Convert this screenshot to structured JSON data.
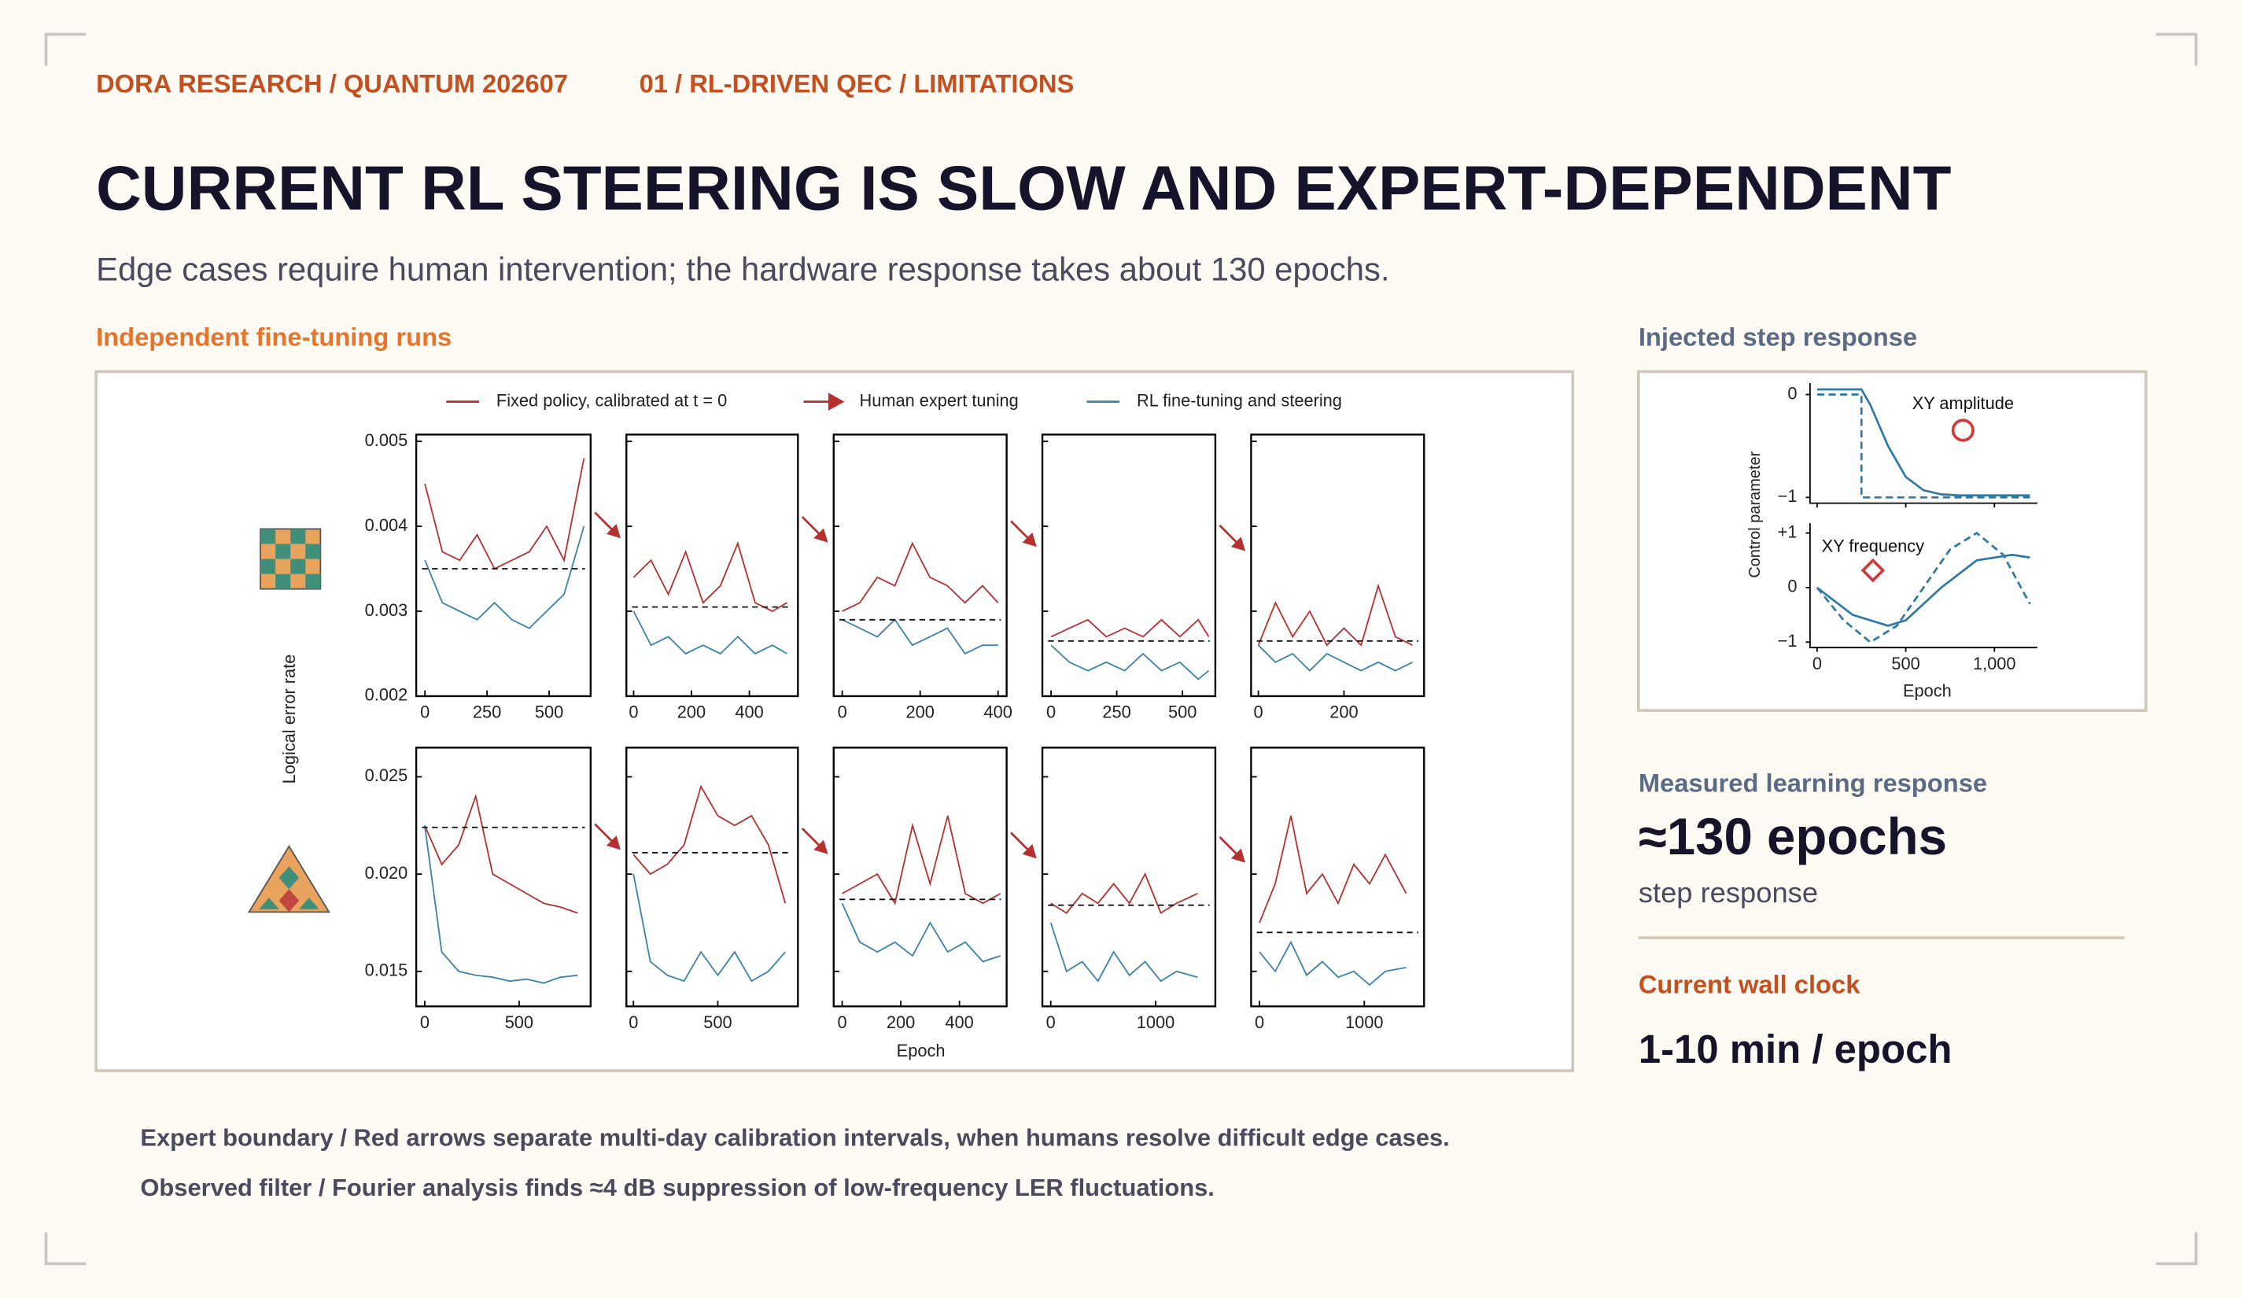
{
  "header": {
    "kicker": "DORA RESEARCH / QUANTUM 202607",
    "section": "01 / RL-DRIVEN QEC / LIMITATIONS",
    "title": "CURRENT RL STEERING IS SLOW AND EXPERT-DEPENDENT",
    "subtitle": "Edge cases require human intervention; the hardware response takes about 130 epochs."
  },
  "runs_figure": {
    "label": "Independent fine-tuning runs",
    "y_axis_label": "Logical error rate",
    "x_axis_label": "Epoch",
    "legend": [
      {
        "name": "Fixed policy, calibrated at t = 0",
        "color": "#b5312f"
      },
      {
        "name": "Human expert tuning",
        "color": "#b5312f"
      },
      {
        "name": "RL fine-tuning and steering",
        "color": "#3b83a8"
      }
    ],
    "rows": [
      {
        "ylim": [
          0.002,
          0.00508
        ],
        "yticks": [
          0.002,
          0.003,
          0.004,
          0.005
        ],
        "panels": [
          {
            "xlim": [
              -35,
              667
            ],
            "xticks": [
              0,
              250,
              500
            ],
            "baseline": 0.0035,
            "x": [
              0,
              70,
              140,
              210,
              280,
              350,
              420,
              490,
              560,
              640
            ],
            "fixed": [
              0.0045,
              0.0037,
              0.0036,
              0.0039,
              0.0035,
              0.0036,
              0.0037,
              0.004,
              0.0036,
              0.0048
            ],
            "rl": [
              0.0036,
              0.0031,
              0.003,
              0.0029,
              0.0031,
              0.0029,
              0.0028,
              0.003,
              0.0032,
              0.004
            ]
          },
          {
            "xlim": [
              -25,
              568
            ],
            "xticks": [
              0,
              200,
              400
            ],
            "baseline": 0.00305,
            "x": [
              0,
              60,
              120,
              180,
              240,
              300,
              360,
              420,
              480,
              530
            ],
            "fixed": [
              0.0034,
              0.0036,
              0.0032,
              0.0037,
              0.0031,
              0.0033,
              0.0038,
              0.0031,
              0.003,
              0.0031
            ],
            "rl": [
              0.003,
              0.0026,
              0.0027,
              0.0025,
              0.0026,
              0.0025,
              0.0027,
              0.0025,
              0.0026,
              0.0025
            ]
          },
          {
            "xlim": [
              -22,
              422
            ],
            "xticks": [
              0,
              200,
              400
            ],
            "baseline": 0.0029,
            "x": [
              0,
              45,
              90,
              135,
              180,
              225,
              270,
              315,
              360,
              400
            ],
            "fixed": [
              0.003,
              0.0031,
              0.0034,
              0.0033,
              0.0038,
              0.0034,
              0.0033,
              0.0031,
              0.0033,
              0.0031
            ],
            "rl": [
              0.0029,
              0.0028,
              0.0027,
              0.0029,
              0.0026,
              0.0027,
              0.0028,
              0.0025,
              0.0026,
              0.0026
            ]
          },
          {
            "xlim": [
              -33,
              625
            ],
            "xticks": [
              0,
              250,
              500
            ],
            "baseline": 0.00265,
            "x": [
              0,
              70,
              140,
              210,
              280,
              350,
              420,
              490,
              560,
              600
            ],
            "fixed": [
              0.0027,
              0.0028,
              0.0029,
              0.0027,
              0.0028,
              0.0027,
              0.0029,
              0.0027,
              0.0029,
              0.0027
            ],
            "rl": [
              0.0026,
              0.0024,
              0.0023,
              0.0024,
              0.0023,
              0.0025,
              0.0023,
              0.0024,
              0.0022,
              0.0023
            ]
          },
          {
            "xlim": [
              -17,
              387
            ],
            "xticks": [
              0,
              200
            ],
            "baseline": 0.00265,
            "x": [
              0,
              40,
              80,
              120,
              160,
              200,
              240,
              280,
              320,
              360
            ],
            "fixed": [
              0.0026,
              0.0031,
              0.0027,
              0.003,
              0.0026,
              0.0028,
              0.0026,
              0.0033,
              0.0027,
              0.0026
            ],
            "rl": [
              0.0026,
              0.0024,
              0.0025,
              0.0023,
              0.0025,
              0.0024,
              0.0023,
              0.0024,
              0.0023,
              0.0024
            ]
          }
        ]
      },
      {
        "ylim": [
          0.0132,
          0.0265
        ],
        "yticks": [
          0.015,
          {
            "value": 0.02,
            "label": "0.020"
          },
          0.025
        ],
        "panels": [
          {
            "xlim": [
              -45,
              879
            ],
            "xticks": [
              0,
              500
            ],
            "baseline": 0.0224,
            "x": [
              0,
              90,
              180,
              270,
              360,
              450,
              540,
              630,
              720,
              810
            ],
            "fixed": [
              0.0225,
              0.0205,
              0.0215,
              0.024,
              0.02,
              0.0195,
              0.019,
              0.0185,
              0.0183,
              0.018
            ],
            "rl": [
              0.0225,
              0.016,
              0.015,
              0.0148,
              0.0147,
              0.0145,
              0.0146,
              0.0144,
              0.0147,
              0.0148
            ]
          },
          {
            "xlim": [
              -42,
              975
            ],
            "xticks": [
              0,
              500
            ],
            "baseline": 0.0211,
            "x": [
              0,
              100,
              200,
              300,
              400,
              500,
              600,
              700,
              800,
              900
            ],
            "fixed": [
              0.021,
              0.02,
              0.0205,
              0.0215,
              0.0245,
              0.023,
              0.0225,
              0.023,
              0.0215,
              0.0185
            ],
            "rl": [
              0.02,
              0.0155,
              0.0148,
              0.0145,
              0.016,
              0.0148,
              0.016,
              0.0145,
              0.015,
              0.016
            ]
          },
          {
            "xlim": [
              -29,
              561
            ],
            "xticks": [
              0,
              200,
              400
            ],
            "baseline": 0.0187,
            "x": [
              0,
              60,
              120,
              180,
              240,
              300,
              360,
              420,
              480,
              540
            ],
            "fixed": [
              0.019,
              0.0195,
              0.02,
              0.0185,
              0.0225,
              0.0195,
              0.023,
              0.019,
              0.0185,
              0.019
            ],
            "rl": [
              0.0185,
              0.0165,
              0.016,
              0.0165,
              0.0158,
              0.0175,
              0.016,
              0.0165,
              0.0155,
              0.0158
            ]
          },
          {
            "xlim": [
              -80,
              1570
            ],
            "xticks": [
              0,
              1000
            ],
            "baseline": 0.0184,
            "x": [
              0,
              150,
              300,
              450,
              600,
              750,
              900,
              1050,
              1200,
              1400
            ],
            "fixed": [
              0.0185,
              0.018,
              0.019,
              0.0185,
              0.0195,
              0.0185,
              0.02,
              0.018,
              0.0185,
              0.019
            ],
            "rl": [
              0.0175,
              0.015,
              0.0155,
              0.0145,
              0.016,
              0.0148,
              0.0155,
              0.0145,
              0.015,
              0.0147
            ]
          },
          {
            "xlim": [
              -80,
              1570
            ],
            "xticks": [
              0,
              1000
            ],
            "baseline": 0.017,
            "x": [
              0,
              150,
              300,
              450,
              600,
              750,
              900,
              1050,
              1200,
              1400
            ],
            "fixed": [
              0.0175,
              0.0195,
              0.023,
              0.019,
              0.02,
              0.0185,
              0.0205,
              0.0195,
              0.021,
              0.019
            ],
            "rl": [
              0.016,
              0.015,
              0.0165,
              0.0148,
              0.0155,
              0.0147,
              0.015,
              0.0143,
              0.015,
              0.0152
            ]
          }
        ]
      }
    ]
  },
  "step_figure": {
    "label": "Injected step response",
    "y_axis_label": "Control parameter",
    "x_axis_label": "Epoch",
    "color": "#2f7aa3",
    "xlim": [
      -40,
      1242
    ],
    "xticks": [
      0,
      500,
      {
        "value": 1000,
        "label": "1,000"
      }
    ],
    "panels": [
      {
        "annotation": "XY amplitude",
        "ylim": [
          -1.056,
          0.111
        ],
        "yticks": [
          {
            "value": -1,
            "label": "−1"
          },
          0
        ],
        "series": [
          {
            "style": "solid",
            "x": [
              0,
              100,
              250,
              300,
              400,
              500,
              600,
              700,
              800,
              1000,
              1200
            ],
            "values": [
              0.05,
              0.05,
              0.05,
              -0.1,
              -0.5,
              -0.8,
              -0.93,
              -0.97,
              -0.98,
              -0.98,
              -0.98
            ]
          },
          {
            "style": "dashed",
            "x": [
              0,
              250,
              250,
              1200
            ],
            "values": [
              0,
              0,
              -1,
              -1
            ]
          }
        ]
      },
      {
        "annotation": "XY frequency",
        "ylim": [
          -1.1,
          1.18
        ],
        "yticks": [
          {
            "value": -1,
            "label": "−1"
          },
          0,
          {
            "value": 1,
            "label": "+1"
          }
        ],
        "series": [
          {
            "style": "solid",
            "x": [
              0,
              200,
              400,
              500,
              700,
              900,
              1100,
              1200
            ],
            "values": [
              0,
              -0.5,
              -0.7,
              -0.6,
              0,
              0.5,
              0.6,
              0.55
            ]
          },
          {
            "style": "dashed",
            "x": [
              0,
              150,
              300,
              450,
              600,
              750,
              900,
              1050,
              1200
            ],
            "values": [
              0,
              -0.6,
              -1,
              -0.7,
              0,
              0.7,
              1,
              0.6,
              -0.3
            ]
          }
        ]
      }
    ]
  },
  "metrics": {
    "learning_label": "Measured learning response",
    "learning_value": "≈130 epochs",
    "learning_note": "step response",
    "clock_label": "Current wall clock",
    "clock_value": "1-10 min / epoch"
  },
  "notes": [
    "Expert boundary  /  Red arrows separate multi-day calibration intervals, when humans resolve difficult edge cases.",
    "Observed filter  /  Fourier analysis finds ≈4 dB suppression of low-frequency LER fluctuations."
  ]
}
